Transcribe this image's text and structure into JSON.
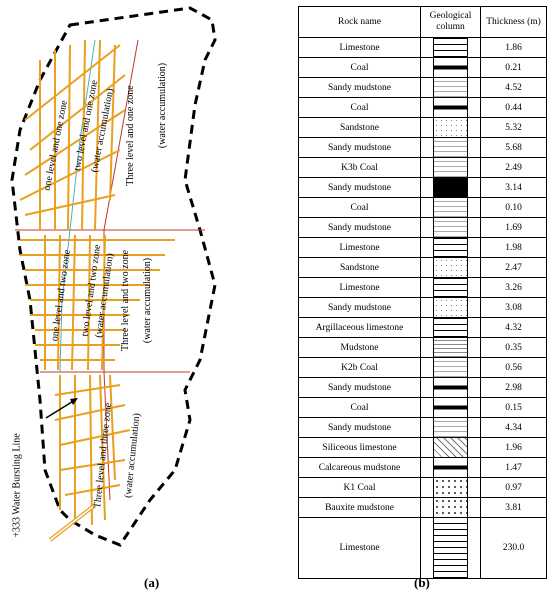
{
  "panel_a": {
    "zones": [
      {
        "label": "one level and one zone"
      },
      {
        "label": "two level and one zone"
      },
      {
        "label": "(water accumulation)"
      },
      {
        "label": "Three level and one zone"
      },
      {
        "label": "(water accumulation)"
      },
      {
        "label": "one level and two zone"
      },
      {
        "label": "two level and two zone"
      },
      {
        "label": "(water accumulation)"
      },
      {
        "label": "Three level and two zone"
      },
      {
        "label": "(water accumulation)"
      },
      {
        "label": "Three level and three zone"
      },
      {
        "label": "(water accumulation)"
      }
    ],
    "bursting_line_label": "+333 Water Bursting Line",
    "caption": "(a)"
  },
  "panel_b": {
    "headers": {
      "rock": "Rock name",
      "column": "Geological column",
      "thickness": "Thickness (m)"
    },
    "rows": [
      {
        "rock": "Limestone",
        "thickness": "1.86",
        "pattern": "limestone"
      },
      {
        "rock": "Coal",
        "thickness": "0.21",
        "pattern": "thin-coal"
      },
      {
        "rock": "Sandy mudstone",
        "thickness": "4.52",
        "pattern": "sandy"
      },
      {
        "rock": "Coal",
        "thickness": "0.44",
        "pattern": "thin-coal"
      },
      {
        "rock": "Sandstone",
        "thickness": "5.32",
        "pattern": "sand"
      },
      {
        "rock": "Sandy mudstone",
        "thickness": "5.68",
        "pattern": "sandy"
      },
      {
        "rock": "K3b Coal",
        "thickness": "2.49",
        "pattern": "sandy"
      },
      {
        "rock": "Sandy mudstone",
        "thickness": "3.14",
        "pattern": "coal"
      },
      {
        "rock": "Coal",
        "thickness": "0.10",
        "pattern": "sandy"
      },
      {
        "rock": "Sandy mudstone",
        "thickness": "1.69",
        "pattern": "sandy"
      },
      {
        "rock": "Limestone",
        "thickness": "1.98",
        "pattern": "limestone"
      },
      {
        "rock": "Sandstone",
        "thickness": "2.47",
        "pattern": "sand"
      },
      {
        "rock": "Limestone",
        "thickness": "3.26",
        "pattern": "limestone"
      },
      {
        "rock": "Sandy mudstone",
        "thickness": "3.08",
        "pattern": "sand"
      },
      {
        "rock": "Argillaceous limestone",
        "thickness": "4.32",
        "pattern": "limestone"
      },
      {
        "rock": "Mudstone",
        "thickness": "0.35",
        "pattern": "mud"
      },
      {
        "rock": "K2b Coal",
        "thickness": "0.56",
        "pattern": "sandy"
      },
      {
        "rock": "Sandy mudstone",
        "thickness": "2.98",
        "pattern": "thin-coal"
      },
      {
        "rock": "Coal",
        "thickness": "0.15",
        "pattern": "thin-coal"
      },
      {
        "rock": "Sandy mudstone",
        "thickness": "4.34",
        "pattern": "sandy"
      },
      {
        "rock": "Siliceous limestone",
        "thickness": "1.96",
        "pattern": "siliceous"
      },
      {
        "rock": "Calcareous mudstone",
        "thickness": "1.47",
        "pattern": "thin-coal"
      },
      {
        "rock": "K1 Coal",
        "thickness": "0.97",
        "pattern": "bauxite"
      },
      {
        "rock": "Bauxite mudstone",
        "thickness": "3.81",
        "pattern": "bauxite"
      },
      {
        "rock": "Limestone",
        "thickness": "230.0",
        "pattern": "limestone"
      }
    ],
    "caption": "(b)"
  },
  "colors": {
    "roadway": "#e8a020",
    "roadway_alt": "#d09018",
    "zone_line": "#c0392b",
    "cyan_line": "#4ab0c0"
  }
}
